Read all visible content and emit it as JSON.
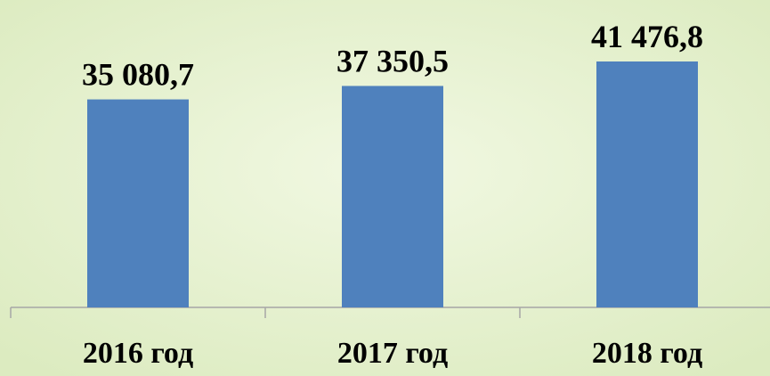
{
  "chart_data": {
    "type": "bar",
    "categories": [
      "2016 год",
      "2017 год",
      "2018 год"
    ],
    "values": [
      35080.7,
      37350.5,
      41476.8
    ],
    "value_labels": [
      "35 080,7",
      "37 350,5",
      "41 476,8"
    ],
    "color": "#4f81bd"
  }
}
